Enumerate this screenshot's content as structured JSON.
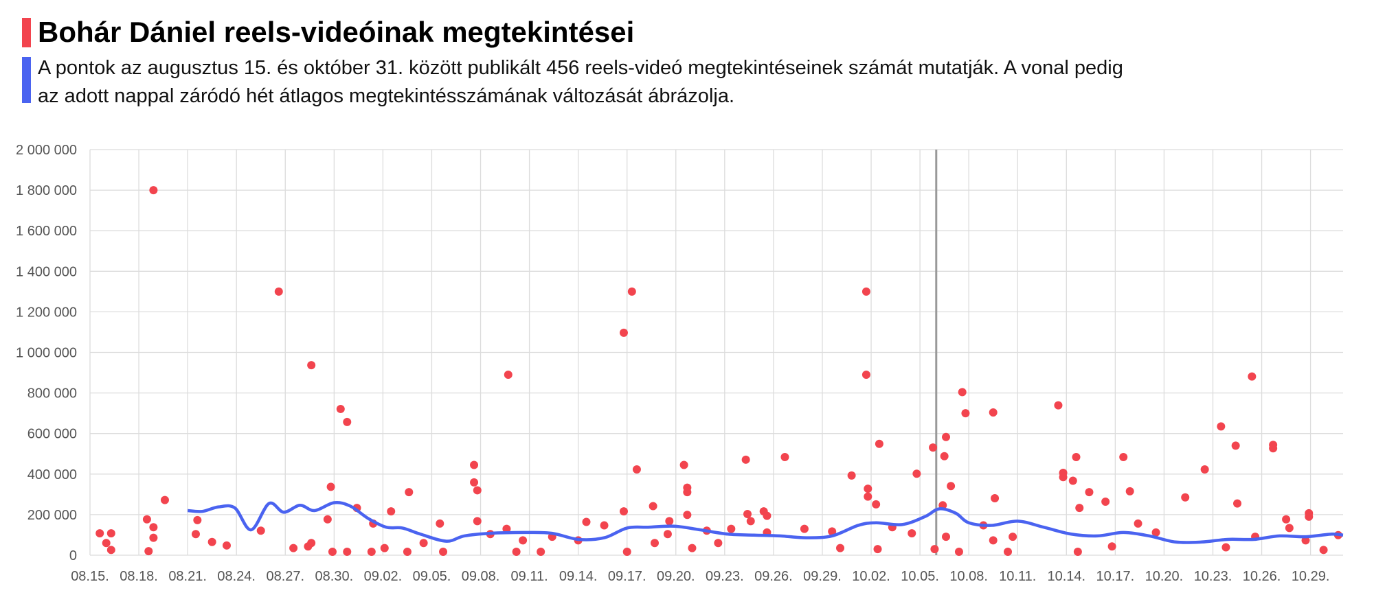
{
  "chart_data": {
    "type": "scatter",
    "title": "Bohár Dániel reels-videóinak megtekintései",
    "subtitle": [
      "A pontok az augusztus 15. és október 31. között publikált 456 reels-videó megtekintéseinek számát mutatják. A vonal pedig",
      "az adott nappal záródó hét átlagos megtekintésszámának változását ábrázolja."
    ],
    "xlim": [
      0,
      77
    ],
    "xticks": [
      {
        "value": 0,
        "label": "08.15."
      },
      {
        "value": 3,
        "label": "08.18."
      },
      {
        "value": 6,
        "label": "08.21."
      },
      {
        "value": 9,
        "label": "08.24."
      },
      {
        "value": 12,
        "label": "08.27."
      },
      {
        "value": 15,
        "label": "08.30."
      },
      {
        "value": 18,
        "label": "09.02."
      },
      {
        "value": 21,
        "label": "09.05."
      },
      {
        "value": 24,
        "label": "09.08."
      },
      {
        "value": 27,
        "label": "09.11."
      },
      {
        "value": 30,
        "label": "09.14."
      },
      {
        "value": 33,
        "label": "09.17."
      },
      {
        "value": 36,
        "label": "09.20."
      },
      {
        "value": 39,
        "label": "09.23."
      },
      {
        "value": 42,
        "label": "09.26."
      },
      {
        "value": 45,
        "label": "09.29."
      },
      {
        "value": 48,
        "label": "10.02."
      },
      {
        "value": 51,
        "label": "10.05."
      },
      {
        "value": 54,
        "label": "10.08."
      },
      {
        "value": 57,
        "label": "10.11."
      },
      {
        "value": 60,
        "label": "10.14."
      },
      {
        "value": 63,
        "label": "10.17."
      },
      {
        "value": 66,
        "label": "10.20."
      },
      {
        "value": 69,
        "label": "10.23."
      },
      {
        "value": 72,
        "label": "10.26."
      },
      {
        "value": 75,
        "label": "10.29."
      }
    ],
    "ylim": [
      0,
      2000000
    ],
    "yticks": [
      0,
      {
        "value": 200000,
        "label": "200 000"
      },
      {
        "value": 400000,
        "label": "400 000"
      },
      {
        "value": 600000,
        "label": "600 000"
      },
      {
        "value": 800000,
        "label": "800 000"
      },
      {
        "value": 1000000,
        "label": "1 000 000"
      },
      {
        "value": 1200000,
        "label": "1 200 000"
      },
      {
        "value": 1400000,
        "label": "1 400 000"
      },
      {
        "value": 1600000,
        "label": "1 600 000"
      },
      {
        "value": 1800000,
        "label": "1 800 000"
      },
      {
        "value": 2000000,
        "label": "2 000 000"
      }
    ],
    "grid": true,
    "vline": 52,
    "series": [
      {
        "type": "scatter",
        "color": "#f2444e",
        "x": [
          0.6,
          1.0,
          1.3,
          1.3,
          3.5,
          3.9,
          3.9,
          3.6,
          3.9,
          4.6,
          6.5,
          6.6,
          7.5,
          8.4,
          10.5,
          11.6,
          12.5,
          13.4,
          13.6,
          13.6,
          14.6,
          14.8,
          15.4,
          15.8,
          14.9,
          15.8,
          16.4,
          17.4,
          17.3,
          18.5,
          18.1,
          19.6,
          19.5,
          20.5,
          21.5,
          21.7,
          23.6,
          23.6,
          23.8,
          23.8,
          24.6,
          25.7,
          25.6,
          26.2,
          26.6,
          27.7,
          28.4,
          30.0,
          30.5,
          31.6,
          32.8,
          32.8,
          33.3,
          33.6,
          33.0,
          34.6,
          34.7,
          35.6,
          35.5,
          36.5,
          36.7,
          36.7,
          36.7,
          37.0,
          37.9,
          38.6,
          40.3,
          40.4,
          40.6,
          39.4,
          41.4,
          41.6,
          41.6,
          42.7,
          43.9,
          45.6,
          46.1,
          46.8,
          47.7,
          47.7,
          47.8,
          47.8,
          48.3,
          48.5,
          48.4,
          49.3,
          50.8,
          50.5,
          51.8,
          51.9,
          52.4,
          52.5,
          52.6,
          52.9,
          52.6,
          53.4,
          53.6,
          53.8,
          54.9,
          55.5,
          55.6,
          55.5,
          56.4,
          56.7,
          59.5,
          59.8,
          59.8,
          60.4,
          60.6,
          60.8,
          61.4,
          60.7,
          62.4,
          63.5,
          63.9,
          64.4,
          62.8,
          65.5,
          67.3,
          68.5,
          69.5,
          70.4,
          70.5,
          69.8,
          71.4,
          71.6,
          72.7,
          72.7,
          73.5,
          73.7,
          74.9,
          74.9,
          74.7,
          75.8,
          76.7
        ],
        "values": [
          108000,
          60000,
          108000,
          26000,
          177000,
          1800000,
          86000,
          20000,
          138000,
          272000,
          104000,
          173000,
          65000,
          48000,
          121000,
          1300000,
          35000,
          43000,
          937000,
          60000,
          177000,
          337000,
          721000,
          657000,
          17000,
          17000,
          233000,
          156000,
          17000,
          216000,
          35000,
          311000,
          17000,
          60000,
          156000,
          17000,
          445000,
          359000,
          320000,
          168000,
          104000,
          890000,
          130000,
          17000,
          73000,
          17000,
          91000,
          73000,
          164000,
          147000,
          1097000,
          216000,
          1300000,
          423000,
          17000,
          242000,
          60000,
          168000,
          104000,
          445000,
          333000,
          311000,
          199000,
          35000,
          121000,
          60000,
          471000,
          203000,
          168000,
          130000,
          216000,
          194000,
          112000,
          484000,
          130000,
          117000,
          35000,
          393000,
          1300000,
          890000,
          328000,
          289000,
          251000,
          549000,
          30000,
          138000,
          402000,
          108000,
          531000,
          30000,
          246000,
          488000,
          583000,
          341000,
          91000,
          17000,
          804000,
          700000,
          147000,
          704000,
          281000,
          73000,
          17000,
          91000,
          739000,
          406000,
          385000,
          367000,
          484000,
          233000,
          311000,
          17000,
          264000,
          484000,
          315000,
          156000,
          43000,
          112000,
          285000,
          423000,
          635000,
          540000,
          255000,
          39000,
          881000,
          91000,
          544000,
          527000,
          177000,
          134000,
          207000,
          190000,
          73000,
          26000,
          99000
        ]
      },
      {
        "type": "line",
        "color": "#4a63f0",
        "x": [
          6.0,
          6.9,
          7.9,
          8.9,
          9.9,
          11.0,
          11.9,
          12.9,
          13.8,
          15.0,
          16.0,
          17.1,
          18.2,
          19.2,
          20.3,
          21.9,
          23.0,
          24.6,
          26.8,
          28.4,
          30.0,
          31.6,
          33.0,
          34.3,
          35.9,
          37.5,
          39.2,
          40.8,
          42.4,
          44.0,
          45.6,
          47.2,
          48.3,
          49.9,
          51.3,
          52.2,
          53.2,
          54.0,
          55.4,
          57.0,
          58.6,
          60.3,
          61.9,
          63.5,
          65.1,
          66.7,
          68.3,
          69.9,
          71.5,
          73.1,
          74.7,
          76.3,
          77.0
        ],
        "values": [
          220000,
          216000,
          238000,
          233000,
          125000,
          255000,
          212000,
          246000,
          220000,
          259000,
          242000,
          181000,
          138000,
          134000,
          104000,
          69000,
          95000,
          108000,
          112000,
          108000,
          78000,
          86000,
          134000,
          138000,
          143000,
          125000,
          104000,
          99000,
          95000,
          86000,
          95000,
          147000,
          160000,
          151000,
          190000,
          229000,
          207000,
          160000,
          147000,
          168000,
          138000,
          104000,
          95000,
          112000,
          95000,
          65000,
          65000,
          78000,
          78000,
          95000,
          91000,
          104000,
          99000
        ]
      }
    ]
  }
}
